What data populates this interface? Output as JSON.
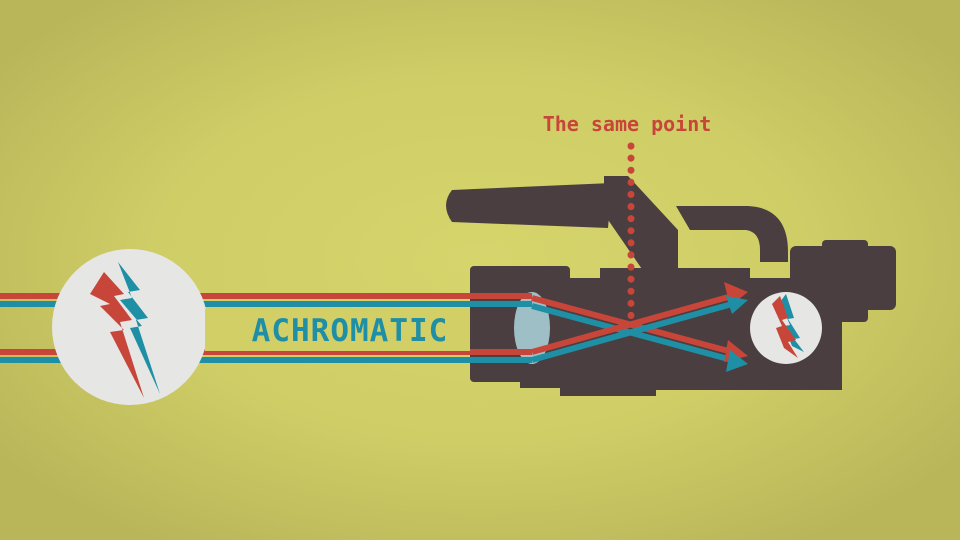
{
  "diagram": {
    "callout_label": "The same point",
    "banner_label": "ACHROMATIC"
  },
  "colors": {
    "background": "#d1cf66",
    "camera_body": "#4a3e40",
    "lens_glass": "#a8cdd6",
    "red_ray": "#c8453a",
    "blue_ray": "#1f8fa6",
    "disc": "#e6e6e4"
  },
  "icons": {
    "source_light": "bolt-arrows-icon",
    "sensor_light": "bolt-arrows-icon"
  }
}
